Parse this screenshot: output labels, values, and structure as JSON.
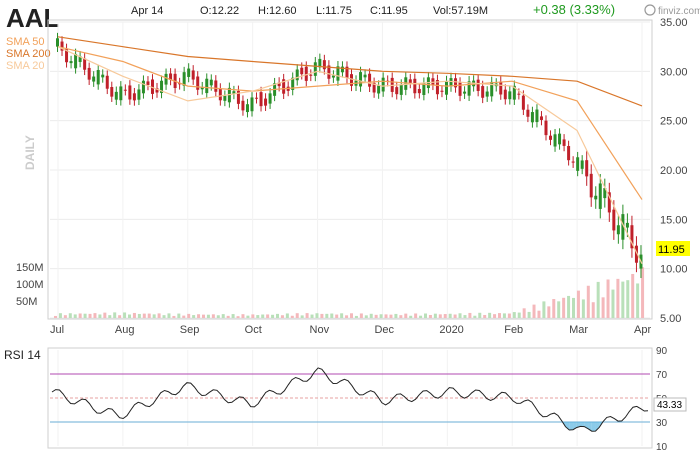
{
  "header": {
    "ticker": "AAL",
    "date": "Apr 14",
    "open": "O:12.22",
    "high": "H:12.60",
    "low": "L:11.75",
    "close": "C:11.95",
    "volume": "Vol:57.19M",
    "change": "+0.38 (3.33%)",
    "brand": "finviz.com"
  },
  "legend": {
    "sma50": "SMA 50",
    "sma200": "SMA 200",
    "sma20": "SMA 20",
    "daily": "DAILY"
  },
  "price_axis": {
    "ticks": [
      "35.00",
      "30.00",
      "25.00",
      "20.00",
      "15.00",
      "10.00",
      "5.00"
    ],
    "current": "11.95"
  },
  "volume_axis": {
    "ticks": [
      "150M",
      "100M",
      "50M"
    ]
  },
  "x_axis": {
    "ticks": [
      "Jul",
      "Aug",
      "Sep",
      "Oct",
      "Nov",
      "Dec",
      "2020",
      "Feb",
      "Mar",
      "Apr"
    ]
  },
  "rsi": {
    "title": "RSI 14",
    "ticks": [
      "90",
      "70",
      "50",
      "30",
      "10"
    ],
    "current": "43.33"
  },
  "colors": {
    "up": "#2a8f2a",
    "down": "#c0202a",
    "sma50": "#f2a15a",
    "sma200": "#d9762a",
    "sma20": "#f7c99a",
    "vol_up": "#b9e0b9",
    "vol_down": "#f4b8bb",
    "rsi_line": "#222222",
    "rsi_fill": "#5bb5e0"
  },
  "chart_data": {
    "type": "line",
    "x": [
      "Jul",
      "Aug",
      "Sep",
      "Oct",
      "Nov",
      "Dec",
      "2020",
      "Feb",
      "Mar",
      "Apr"
    ],
    "price": {
      "ylim": [
        5,
        35
      ],
      "series": [
        {
          "name": "AAL",
          "values": [
            32.5,
            27.5,
            29.5,
            26.5,
            30.5,
            28.5,
            28.5,
            28.0,
            21.0,
            11.5
          ]
        },
        {
          "name": "SMA 50",
          "values": [
            32.5,
            31.0,
            28.5,
            28.0,
            28.5,
            29.0,
            28.5,
            29.0,
            27.0,
            17.0
          ]
        },
        {
          "name": "SMA 200",
          "values": [
            33.5,
            32.5,
            31.5,
            31.0,
            30.5,
            30.0,
            29.8,
            29.5,
            29.0,
            26.5
          ]
        },
        {
          "name": "SMA 20",
          "values": [
            32.5,
            29.5,
            27.0,
            28.0,
            30.0,
            28.5,
            29.0,
            28.5,
            24.0,
            10.5
          ]
        }
      ]
    },
    "volume": {
      "unit": "M",
      "values": [
        10,
        12,
        9,
        8,
        11,
        9,
        10,
        12,
        60,
        110
      ]
    },
    "rsi": {
      "ylim": [
        10,
        90
      ],
      "values": [
        55,
        35,
        60,
        45,
        72,
        48,
        55,
        50,
        22,
        43.33
      ],
      "levels": [
        70,
        50,
        30
      ]
    }
  }
}
